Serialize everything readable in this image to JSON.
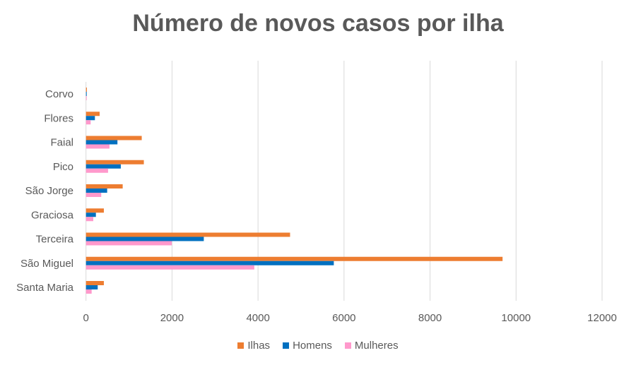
{
  "chart_data": {
    "type": "bar",
    "orientation": "horizontal",
    "title": "Número de novos casos por ilha",
    "categories": [
      "Corvo",
      "Flores",
      "Faial",
      "Pico",
      "São Jorge",
      "Graciosa",
      "Terceira",
      "São Miguel",
      "Santa Maria"
    ],
    "series": [
      {
        "name": "Ilhas",
        "color": "#ED7D31",
        "values": [
          20,
          317,
          1296,
          1345,
          853,
          415,
          4745,
          9686,
          415
        ]
      },
      {
        "name": "Homens",
        "color": "#0070C0",
        "values": [
          10,
          207,
          731,
          809,
          492,
          230,
          2739,
          5762,
          272
        ]
      },
      {
        "name": "Mulheres",
        "color": "#FF99CC",
        "values": [
          10,
          108,
          546,
          513,
          354,
          169,
          1995,
          3913,
          131
        ]
      }
    ],
    "xticks": [
      "0",
      "2000",
      "4000",
      "6000",
      "8000",
      "10000",
      "12000"
    ],
    "xlim": [
      0,
      12000
    ],
    "grid": true,
    "legend": "bottom"
  }
}
